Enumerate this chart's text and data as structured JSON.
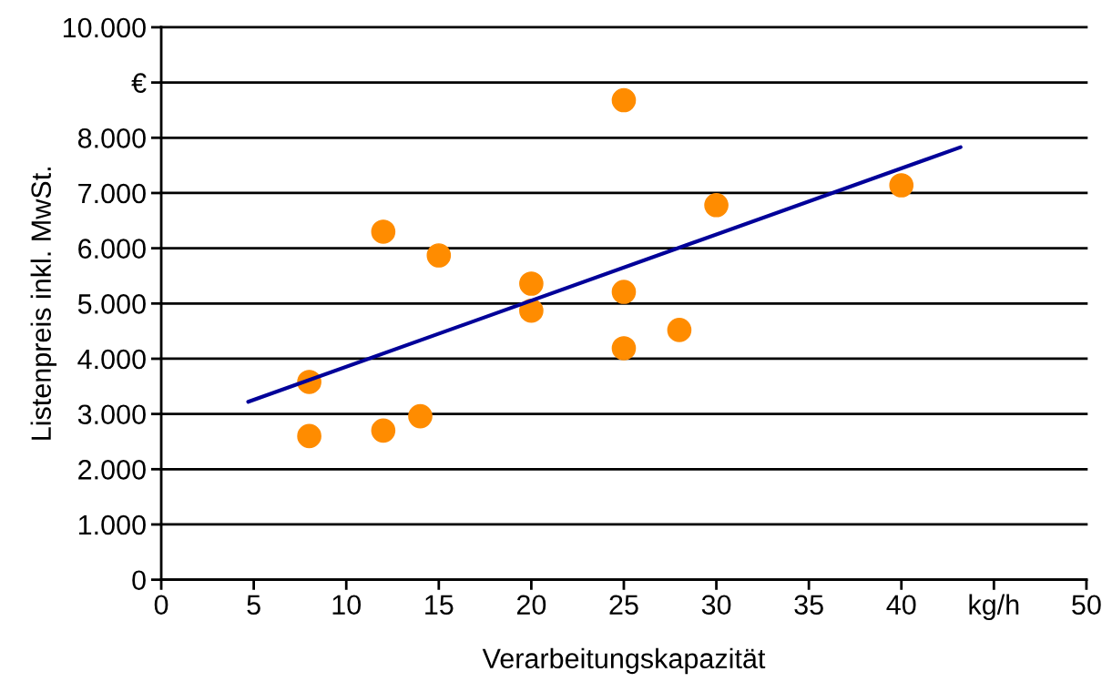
{
  "chart_data": {
    "type": "scatter",
    "xlabel": "Verarbeitungskapazität",
    "ylabel": "Listenpreis inkl. MwSt.",
    "xlim": [
      0,
      50
    ],
    "ylim": [
      0,
      10000
    ],
    "xticks": [
      0,
      5,
      10,
      15,
      20,
      25,
      30,
      35,
      40,
      {
        "value": 45,
        "label": "kg/h"
      },
      50
    ],
    "yticks": [
      {
        "value": 0,
        "label": "0"
      },
      {
        "value": 1000,
        "label": "1.000"
      },
      {
        "value": 2000,
        "label": "2.000"
      },
      {
        "value": 3000,
        "label": "3.000"
      },
      {
        "value": 4000,
        "label": "4.000"
      },
      {
        "value": 5000,
        "label": "5.000"
      },
      {
        "value": 6000,
        "label": "6.000"
      },
      {
        "value": 7000,
        "label": "7.000"
      },
      {
        "value": 8000,
        "label": "8.000"
      },
      {
        "value": 9000,
        "label": "€"
      },
      {
        "value": 10000,
        "label": "10.000"
      }
    ],
    "grid": "y",
    "legend": false,
    "series": [
      {
        "color": "#ff8c00",
        "marker": "circle",
        "x": [
          8,
          8,
          12,
          12,
          14,
          15,
          20,
          20,
          25,
          25,
          25,
          28,
          30,
          40
        ],
        "values": [
          2600,
          3580,
          2700,
          6300,
          2960,
          5870,
          5360,
          4870,
          8680,
          5210,
          4190,
          4520,
          6780,
          7140
        ]
      },
      {
        "type": "line",
        "color": "#000099",
        "marker": "none",
        "x": [
          4.7,
          43.2
        ],
        "values": [
          3220,
          7830
        ]
      }
    ]
  }
}
